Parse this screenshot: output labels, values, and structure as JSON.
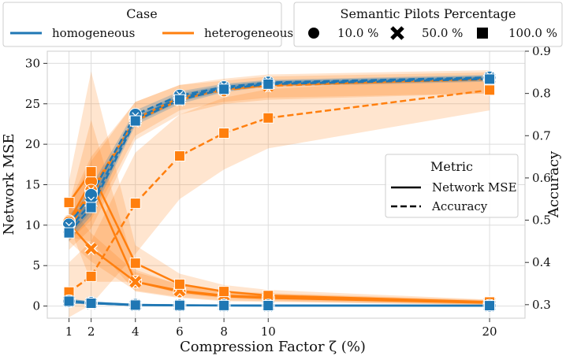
{
  "chart_data": {
    "type": "line",
    "xlabel": "Compression Factor ζ (%)",
    "ylabel_left": "Network MSE",
    "ylabel_right": "Accuracy",
    "x": [
      1,
      2,
      4,
      6,
      8,
      10,
      20
    ],
    "x_ticks": [
      1,
      2,
      4,
      6,
      8,
      10,
      20
    ],
    "ylim_left": [
      -1.5,
      31.5
    ],
    "yticks_left": [
      0,
      5,
      10,
      15,
      20,
      25,
      30
    ],
    "ylim_right": [
      0.268,
      0.9
    ],
    "yticks_right": [
      0.3,
      0.4,
      0.5,
      0.6,
      0.7,
      0.8,
      0.9
    ],
    "grid": true,
    "colors": {
      "homogeneous": "#1f77b4",
      "heterogeneous": "#ff7f0e"
    },
    "legend_case": {
      "title": "Case",
      "entries": [
        {
          "label": "homogeneous",
          "color": "#1f77b4"
        },
        {
          "label": "heterogeneous",
          "color": "#ff7f0e"
        }
      ]
    },
    "legend_pilots": {
      "title": "Semantic Pilots Percentage",
      "entries": [
        {
          "label": "10.0 %",
          "marker": "circle"
        },
        {
          "label": "50.0 %",
          "marker": "x"
        },
        {
          "label": "100.0 %",
          "marker": "square"
        }
      ]
    },
    "legend_metric": {
      "title": "Metric",
      "entries": [
        {
          "label": "Network MSE",
          "style": "solid"
        },
        {
          "label": "Accuracy",
          "style": "dashed"
        }
      ]
    },
    "series": [
      {
        "name": "homogeneous Network MSE 10.0 %",
        "case": "homogeneous",
        "metric": "mse",
        "marker": "circle",
        "values": [
          0.6,
          0.4,
          0.15,
          0.1,
          0.08,
          0.07,
          0.05
        ],
        "ci_low": [
          0.3,
          0.2,
          0.05,
          0.03,
          0.02,
          0.02,
          0.01
        ],
        "ci_high": [
          0.9,
          0.6,
          0.3,
          0.2,
          0.15,
          0.12,
          0.1
        ]
      },
      {
        "name": "homogeneous Network MSE 50.0 %",
        "case": "homogeneous",
        "metric": "mse",
        "marker": "x",
        "values": [
          0.6,
          0.35,
          0.12,
          0.09,
          0.07,
          0.06,
          0.05
        ],
        "ci_low": [
          0.3,
          0.2,
          0.05,
          0.03,
          0.02,
          0.02,
          0.01
        ],
        "ci_high": [
          0.9,
          0.55,
          0.25,
          0.18,
          0.14,
          0.11,
          0.1
        ]
      },
      {
        "name": "homogeneous Network MSE 100.0 %",
        "case": "homogeneous",
        "metric": "mse",
        "marker": "square",
        "values": [
          0.6,
          0.35,
          0.12,
          0.09,
          0.07,
          0.06,
          0.05
        ],
        "ci_low": [
          0.3,
          0.2,
          0.05,
          0.03,
          0.02,
          0.02,
          0.01
        ],
        "ci_high": [
          0.9,
          0.55,
          0.25,
          0.18,
          0.14,
          0.11,
          0.1
        ]
      },
      {
        "name": "homogeneous Accuracy 10.0 %",
        "case": "homogeneous",
        "metric": "accuracy",
        "marker": "circle",
        "values": [
          0.49,
          0.56,
          0.75,
          0.795,
          0.815,
          0.826,
          0.838
        ],
        "ci_low": [
          0.47,
          0.54,
          0.74,
          0.785,
          0.807,
          0.82,
          0.832
        ],
        "ci_high": [
          0.51,
          0.58,
          0.76,
          0.805,
          0.823,
          0.832,
          0.844
        ]
      },
      {
        "name": "homogeneous Accuracy 50.0 %",
        "case": "homogeneous",
        "metric": "accuracy",
        "marker": "x",
        "values": [
          0.48,
          0.54,
          0.74,
          0.79,
          0.812,
          0.824,
          0.836
        ],
        "ci_low": [
          0.46,
          0.52,
          0.73,
          0.78,
          0.805,
          0.818,
          0.83
        ],
        "ci_high": [
          0.5,
          0.56,
          0.75,
          0.8,
          0.82,
          0.83,
          0.842
        ]
      },
      {
        "name": "homogeneous Accuracy 100.0 %",
        "case": "homogeneous",
        "metric": "accuracy",
        "marker": "square",
        "values": [
          0.47,
          0.53,
          0.735,
          0.785,
          0.81,
          0.822,
          0.834
        ],
        "ci_low": [
          0.45,
          0.51,
          0.725,
          0.775,
          0.803,
          0.816,
          0.828
        ],
        "ci_high": [
          0.49,
          0.55,
          0.745,
          0.795,
          0.818,
          0.828,
          0.84
        ]
      },
      {
        "name": "heterogeneous Network MSE 10.0 %",
        "case": "heterogeneous",
        "metric": "mse",
        "marker": "circle",
        "values": [
          10.5,
          15.4,
          3.0,
          1.8,
          1.2,
          1.0,
          0.4
        ],
        "ci_low": [
          8.5,
          8.0,
          1.8,
          1.0,
          0.6,
          0.5,
          0.15
        ],
        "ci_high": [
          12.5,
          23.0,
          4.5,
          2.6,
          1.8,
          1.5,
          0.7
        ]
      },
      {
        "name": "heterogeneous Network MSE 50.0 %",
        "case": "heterogeneous",
        "metric": "mse",
        "marker": "x",
        "values": [
          10.2,
          7.1,
          3.0,
          1.9,
          1.3,
          1.1,
          0.45
        ],
        "ci_low": [
          8.0,
          5.5,
          1.9,
          1.1,
          0.7,
          0.6,
          0.15
        ],
        "ci_high": [
          12.5,
          9.0,
          4.2,
          2.7,
          1.9,
          1.6,
          0.75
        ]
      },
      {
        "name": "heterogeneous Network MSE 100.0 %",
        "case": "heterogeneous",
        "metric": "mse",
        "marker": "square",
        "values": [
          12.8,
          16.6,
          5.3,
          2.7,
          1.8,
          1.3,
          0.5
        ],
        "ci_low": [
          10.0,
          3.0,
          3.0,
          1.5,
          1.0,
          0.7,
          0.2
        ],
        "ci_high": [
          15.5,
          29.0,
          7.5,
          4.0,
          2.6,
          2.0,
          0.8
        ]
      },
      {
        "name": "heterogeneous Accuracy 10.0 %",
        "case": "heterogeneous",
        "metric": "accuracy",
        "marker": "circle",
        "values": [
          0.495,
          0.57,
          0.74,
          0.79,
          0.807,
          0.82,
          0.833
        ],
        "ci_low": [
          0.45,
          0.5,
          0.7,
          0.76,
          0.78,
          0.79,
          0.8
        ],
        "ci_high": [
          0.54,
          0.65,
          0.78,
          0.82,
          0.83,
          0.84,
          0.85
        ]
      },
      {
        "name": "heterogeneous Accuracy 50.0 %",
        "case": "heterogeneous",
        "metric": "accuracy",
        "marker": "x",
        "values": [
          0.48,
          0.565,
          0.735,
          0.785,
          0.81,
          0.818,
          0.835
        ],
        "ci_low": [
          0.43,
          0.48,
          0.69,
          0.75,
          0.775,
          0.785,
          0.8
        ],
        "ci_high": [
          0.53,
          0.64,
          0.78,
          0.82,
          0.835,
          0.845,
          0.855
        ]
      },
      {
        "name": "heterogeneous Accuracy 100.0 %",
        "case": "heterogeneous",
        "metric": "accuracy",
        "marker": "square",
        "values": [
          0.33,
          0.367,
          0.54,
          0.652,
          0.706,
          0.742,
          0.808
        ],
        "ci_low": [
          0.27,
          0.3,
          0.42,
          0.55,
          0.62,
          0.67,
          0.76
        ],
        "ci_high": [
          0.4,
          0.45,
          0.66,
          0.75,
          0.79,
          0.81,
          0.84
        ]
      }
    ]
  }
}
